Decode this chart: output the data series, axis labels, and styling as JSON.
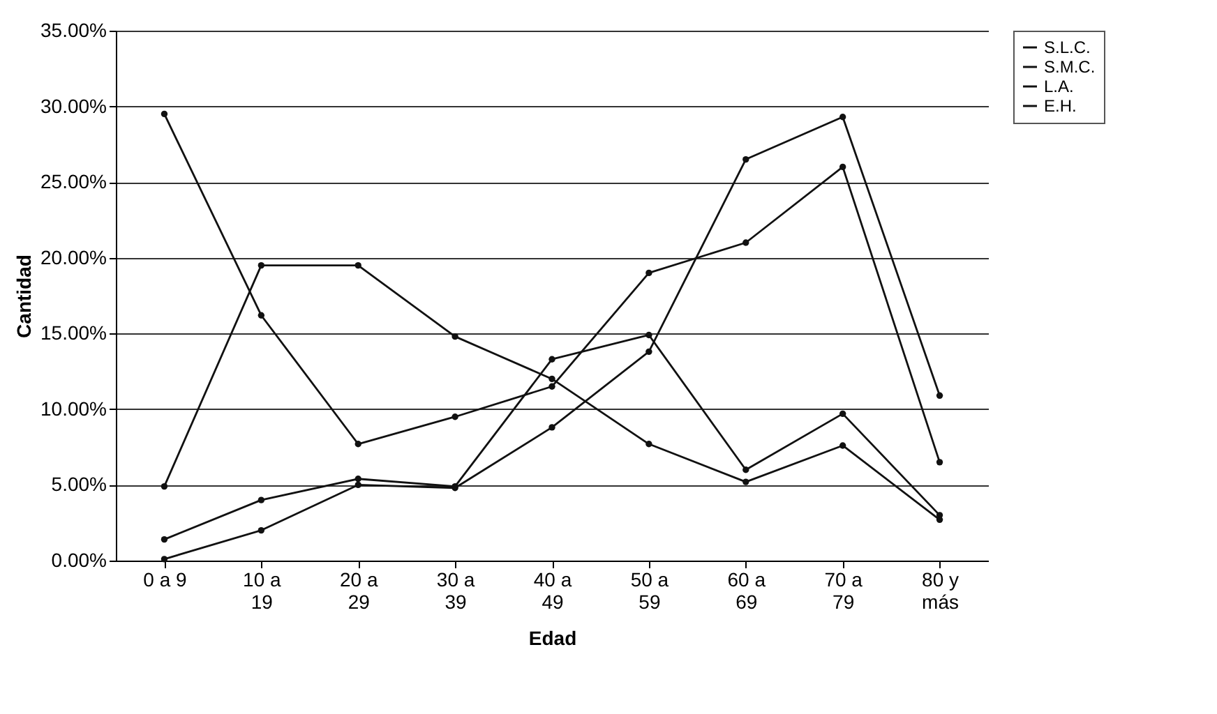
{
  "chart_data": {
    "type": "line",
    "xlabel": "Edad",
    "ylabel": "Cantidad",
    "categories": [
      "0 a 9",
      "10 a 19",
      "20 a 29",
      "30 a 39",
      "40 a 49",
      "50 a 59",
      "60 a 69",
      "70 a 79",
      "80 y más"
    ],
    "series": [
      {
        "name": "S.L.C.",
        "color": "#111111",
        "values": [
          29.5,
          16.2,
          7.7,
          9.5,
          11.5,
          19.0,
          21.0,
          26.0,
          6.5
        ]
      },
      {
        "name": "S.M.C.",
        "color": "#111111",
        "values": [
          0.1,
          2.0,
          5.0,
          4.8,
          8.8,
          13.8,
          26.5,
          29.3,
          10.9
        ]
      },
      {
        "name": "L.A.",
        "color": "#111111",
        "values": [
          1.4,
          4.0,
          5.4,
          4.9,
          13.3,
          14.9,
          6.0,
          9.7,
          3.0
        ]
      },
      {
        "name": "E.H.",
        "color": "#111111",
        "values": [
          4.9,
          19.5,
          19.5,
          14.8,
          12.0,
          7.7,
          5.2,
          7.6,
          2.7
        ]
      }
    ],
    "ylim": [
      0,
      35
    ],
    "yticks": [
      {
        "value": 0,
        "label": "0.00%"
      },
      {
        "value": 5,
        "label": "5.00%"
      },
      {
        "value": 10,
        "label": "10.00%"
      },
      {
        "value": 15,
        "label": "15.00%"
      },
      {
        "value": 20,
        "label": "20.00%"
      },
      {
        "value": 25,
        "label": "25.00%"
      },
      {
        "value": 30,
        "label": "30.00%"
      },
      {
        "value": 35,
        "label": "35.00%"
      }
    ],
    "grid": "y",
    "legend": "right",
    "marker": "circle"
  }
}
